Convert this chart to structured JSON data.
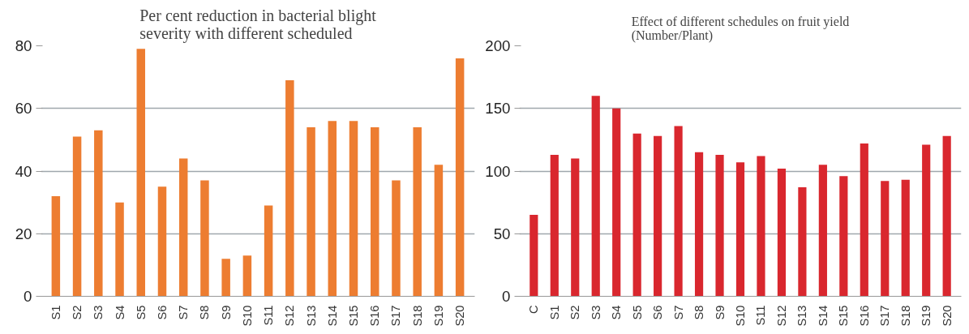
{
  "chart_data": [
    {
      "type": "bar",
      "title": "Per cent reduction in bacterial blight\nseverity with different scheduled",
      "categories": [
        "S1",
        "S2",
        "S3",
        "S4",
        "S5",
        "S6",
        "S7",
        "S8",
        "S9",
        "S10",
        "S11",
        "S12",
        "S13",
        "S14",
        "S15",
        "S16",
        "S17",
        "S18",
        "S19",
        "S20"
      ],
      "values": [
        32,
        51,
        53,
        30,
        79,
        35,
        44,
        37,
        12,
        13,
        29,
        69,
        54,
        56,
        56,
        54,
        37,
        54,
        42,
        76
      ],
      "color": "#ed7d31",
      "ylim": [
        0,
        80
      ],
      "yticks": [
        0,
        20,
        40,
        60,
        80
      ],
      "grid": "y"
    },
    {
      "type": "bar",
      "title": "Effect of different schedules on fruit yield\n(Number/Plant)",
      "categories": [
        "C",
        "S1",
        "S2",
        "S3",
        "S4",
        "S5",
        "S6",
        "S7",
        "S8",
        "S9",
        "S10",
        "S11",
        "S12",
        "S13",
        "S14",
        "S15",
        "S16",
        "S17",
        "S18",
        "S19",
        "S20"
      ],
      "values": [
        65,
        113,
        110,
        160,
        150,
        130,
        128,
        136,
        115,
        113,
        107,
        112,
        102,
        87,
        105,
        96,
        122,
        92,
        93,
        121,
        128
      ],
      "color": "#d9272e",
      "ylim": [
        0,
        200
      ],
      "yticks": [
        0,
        50,
        100,
        150,
        200
      ],
      "grid": "y"
    }
  ]
}
